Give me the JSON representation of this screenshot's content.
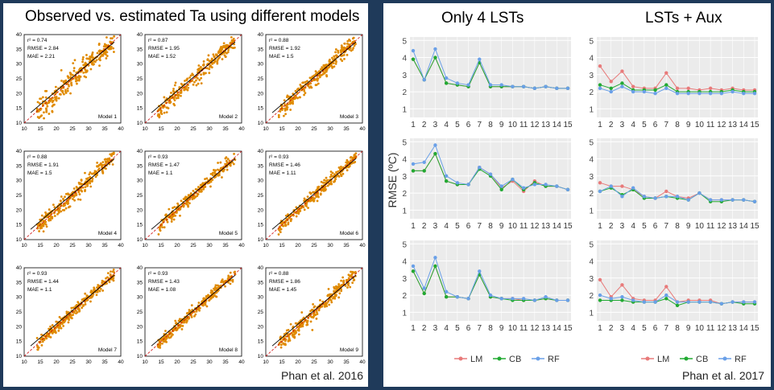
{
  "left_panel": {
    "title": "Observed vs. estimated Ta using different models",
    "credit": "Phan et al. 2016"
  },
  "right_panel": {
    "column_titles": [
      "Only 4 LSTs",
      "LSTs + Aux"
    ],
    "y_axis_label": "RMSE (ºC)",
    "credit": "Phan et al. 2017",
    "legend": [
      "LM",
      "CB",
      "RF"
    ]
  },
  "colors": {
    "background": "#1f3a5a",
    "scatter_points": "#e08a00",
    "fit_line": "#000000",
    "one_to_one_line": "#cc0000",
    "LM": "#e87a7a",
    "CB": "#22aa33",
    "RF": "#6aa0e8",
    "plot_area": "#ebebeb"
  },
  "chart_data": [
    {
      "type": "scatter",
      "layout": "3x3 grid",
      "xlim": [
        10,
        40
      ],
      "ylim": [
        10,
        40
      ],
      "ticks": [
        10,
        15,
        20,
        25,
        30,
        35,
        40
      ],
      "panels": [
        {
          "name": "Model 1",
          "r2": "r² = 0.74",
          "rmse": "RMSE = 2.84",
          "mae": "MAE = 2.21",
          "r2_value": 0.74,
          "rmse_value": 2.84,
          "mae_value": 2.21
        },
        {
          "name": "Model 2",
          "r2": "r² = 0.87",
          "rmse": "RMSE = 1.95",
          "mae": "MAE = 1.52",
          "r2_value": 0.87,
          "rmse_value": 1.95,
          "mae_value": 1.52
        },
        {
          "name": "Model 3",
          "r2": "r² = 0.88",
          "rmse": "RMSE = 1.92",
          "mae": "MAE = 1.5",
          "r2_value": 0.88,
          "rmse_value": 1.92,
          "mae_value": 1.5
        },
        {
          "name": "Model 4",
          "r2": "r² = 0.88",
          "rmse": "RMSE = 1.91",
          "mae": "MAE = 1.5",
          "r2_value": 0.88,
          "rmse_value": 1.91,
          "mae_value": 1.5
        },
        {
          "name": "Model 5",
          "r2": "r² = 0.93",
          "rmse": "RMSE = 1.47",
          "mae": "MAE = 1.1",
          "r2_value": 0.93,
          "rmse_value": 1.47,
          "mae_value": 1.1
        },
        {
          "name": "Model 6",
          "r2": "r² = 0.93",
          "rmse": "RMSE = 1.46",
          "mae": "MAE = 1.11",
          "r2_value": 0.93,
          "rmse_value": 1.46,
          "mae_value": 1.11
        },
        {
          "name": "Model 7",
          "r2": "r² = 0.93",
          "rmse": "RMSE = 1.44",
          "mae": "MAE = 1.1",
          "r2_value": 0.93,
          "rmse_value": 1.44,
          "mae_value": 1.1
        },
        {
          "name": "Model 8",
          "r2": "r² = 0.93",
          "rmse": "RMSE = 1.43",
          "mae": "MAE = 1.08",
          "r2_value": 0.93,
          "rmse_value": 1.43,
          "mae_value": 1.08
        },
        {
          "name": "Model 9",
          "r2": "r² = 0.88",
          "rmse": "RMSE = 1.86",
          "mae": "MAE = 1.45",
          "r2_value": 0.88,
          "rmse_value": 1.86,
          "mae_value": 1.45
        }
      ]
    },
    {
      "type": "line",
      "layout": "3 rows x 2 columns",
      "x": [
        1,
        2,
        3,
        4,
        5,
        6,
        7,
        8,
        9,
        10,
        11,
        12,
        13,
        14,
        15
      ],
      "ylim": [
        0.5,
        5.2
      ],
      "yticks": [
        1,
        2,
        3,
        4,
        5
      ],
      "grid": true,
      "legend_position": "bottom",
      "panels": [
        {
          "column": "Only 4 LSTs",
          "row": 1,
          "series": [
            {
              "name": "LM",
              "values": [
                3.9,
                2.7,
                4.0,
                2.5,
                2.4,
                2.3,
                3.7,
                2.3,
                2.3,
                2.3,
                2.3,
                2.2,
                2.3,
                2.2,
                2.2
              ]
            },
            {
              "name": "CB",
              "values": [
                3.9,
                2.7,
                4.0,
                2.5,
                2.4,
                2.3,
                3.7,
                2.3,
                2.3,
                2.3,
                2.3,
                2.2,
                2.3,
                2.2,
                2.2
              ]
            },
            {
              "name": "RF",
              "values": [
                4.4,
                2.7,
                4.5,
                2.8,
                2.5,
                2.4,
                3.9,
                2.4,
                2.4,
                2.3,
                2.3,
                2.2,
                2.3,
                2.2,
                2.2
              ]
            }
          ]
        },
        {
          "column": "LSTs + Aux",
          "row": 1,
          "series": [
            {
              "name": "LM",
              "values": [
                3.5,
                2.6,
                3.2,
                2.3,
                2.2,
                2.2,
                3.1,
                2.2,
                2.2,
                2.1,
                2.2,
                2.1,
                2.2,
                2.1,
                2.1
              ]
            },
            {
              "name": "CB",
              "values": [
                2.4,
                2.2,
                2.5,
                2.1,
                2.1,
                2.1,
                2.4,
                2.0,
                2.0,
                2.0,
                2.0,
                2.0,
                2.1,
                2.0,
                2.0
              ]
            },
            {
              "name": "RF",
              "values": [
                2.2,
                2.0,
                2.3,
                2.0,
                2.0,
                1.9,
                2.2,
                1.9,
                1.9,
                1.9,
                1.9,
                1.9,
                2.0,
                1.9,
                1.9
              ]
            }
          ]
        },
        {
          "column": "Only 4 LSTs",
          "row": 2,
          "series": [
            {
              "name": "LM",
              "values": [
                3.3,
                3.3,
                4.3,
                2.7,
                2.5,
                2.5,
                3.5,
                3.1,
                2.3,
                2.7,
                2.1,
                2.7,
                2.4,
                2.4,
                2.2
              ]
            },
            {
              "name": "CB",
              "values": [
                3.3,
                3.3,
                4.3,
                2.7,
                2.5,
                2.5,
                3.4,
                3.0,
                2.2,
                2.8,
                2.2,
                2.6,
                2.4,
                2.4,
                2.2
              ]
            },
            {
              "name": "RF",
              "values": [
                3.7,
                3.8,
                4.8,
                3.0,
                2.6,
                2.5,
                3.5,
                3.1,
                2.4,
                2.8,
                2.3,
                2.5,
                2.5,
                2.4,
                2.2
              ]
            }
          ]
        },
        {
          "column": "LSTs + Aux",
          "row": 2,
          "series": [
            {
              "name": "LM",
              "values": [
                2.6,
                2.4,
                2.4,
                2.2,
                1.8,
                1.7,
                2.1,
                1.8,
                1.7,
                2.0,
                1.6,
                1.6,
                1.6,
                1.6,
                1.5
              ]
            },
            {
              "name": "CB",
              "values": [
                2.1,
                2.3,
                1.9,
                2.2,
                1.7,
                1.7,
                1.8,
                1.7,
                1.6,
                2.0,
                1.5,
                1.5,
                1.6,
                1.6,
                1.5
              ]
            },
            {
              "name": "RF",
              "values": [
                2.1,
                2.4,
                1.8,
                2.3,
                1.8,
                1.7,
                1.8,
                1.8,
                1.6,
                2.0,
                1.6,
                1.6,
                1.6,
                1.6,
                1.5
              ]
            }
          ]
        },
        {
          "column": "Only 4 LSTs",
          "row": 3,
          "series": [
            {
              "name": "LM",
              "values": [
                3.4,
                2.1,
                3.7,
                1.9,
                1.9,
                1.8,
                3.2,
                1.9,
                1.8,
                1.8,
                1.7,
                1.7,
                1.8,
                1.7,
                1.7
              ]
            },
            {
              "name": "CB",
              "values": [
                3.4,
                2.1,
                3.7,
                1.9,
                1.9,
                1.8,
                3.2,
                1.9,
                1.8,
                1.7,
                1.7,
                1.7,
                1.8,
                1.7,
                1.7
              ]
            },
            {
              "name": "RF",
              "values": [
                3.7,
                2.4,
                4.2,
                2.2,
                1.9,
                1.8,
                3.4,
                2.0,
                1.8,
                1.8,
                1.8,
                1.7,
                1.9,
                1.7,
                1.7
              ]
            }
          ]
        },
        {
          "column": "LSTs + Aux",
          "row": 3,
          "series": [
            {
              "name": "LM",
              "values": [
                2.9,
                1.9,
                2.6,
                1.8,
                1.7,
                1.7,
                2.5,
                1.6,
                1.7,
                1.7,
                1.7,
                1.5,
                1.6,
                1.6,
                1.6
              ]
            },
            {
              "name": "CB",
              "values": [
                1.7,
                1.7,
                1.7,
                1.6,
                1.6,
                1.6,
                1.8,
                1.4,
                1.6,
                1.6,
                1.6,
                1.5,
                1.6,
                1.5,
                1.5
              ]
            },
            {
              "name": "RF",
              "values": [
                2.0,
                1.8,
                1.9,
                1.7,
                1.6,
                1.6,
                2.0,
                1.6,
                1.6,
                1.6,
                1.6,
                1.5,
                1.6,
                1.6,
                1.6
              ]
            }
          ]
        }
      ]
    }
  ]
}
